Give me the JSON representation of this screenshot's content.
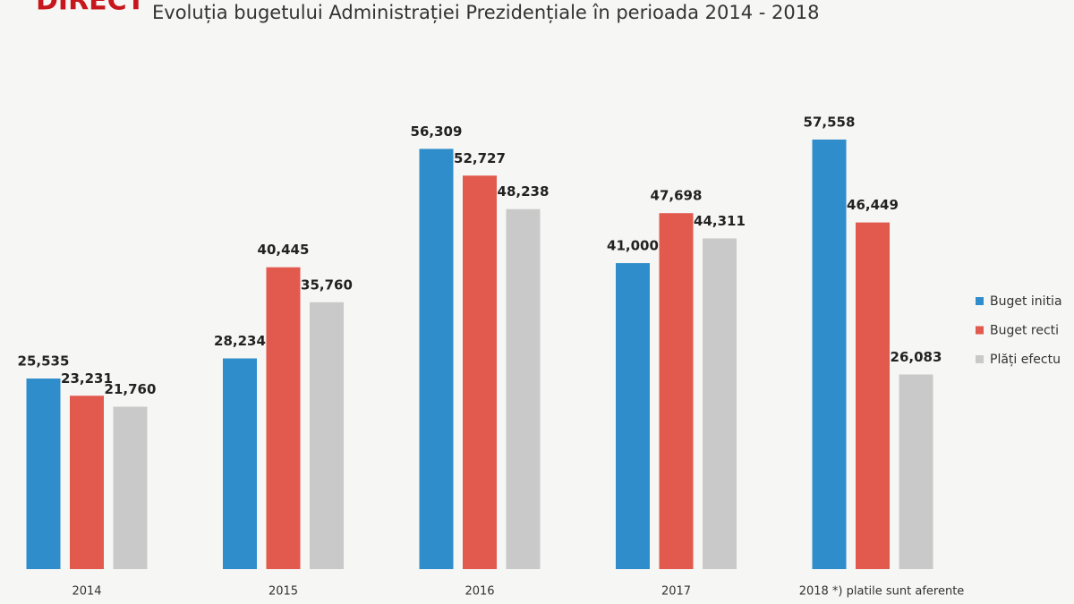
{
  "overlay_label": "DIRECT",
  "chart_data": {
    "type": "bar",
    "title": "Evoluția bugetului Administrației Prezidențiale în perioada 2014 - 2018",
    "categories": [
      "2014",
      "2015",
      "2016",
      "2017",
      "2018 *) platile sunt aferente"
    ],
    "series": [
      {
        "name": "Buget initia",
        "color": "#2f8dcb",
        "values": [
          25535,
          28234,
          56309,
          41000,
          57558
        ],
        "value_labels": [
          "25,535",
          "28,234",
          "56,309",
          "41,000",
          "57,558"
        ]
      },
      {
        "name": "Buget recti",
        "color": "#e2594d",
        "values": [
          23231,
          40445,
          52727,
          47698,
          46449
        ],
        "value_labels": [
          "23,231",
          "40,445",
          "52,727",
          "47,698",
          "46,449"
        ]
      },
      {
        "name": "Plăți efectu",
        "color": "#c9c9c9",
        "values": [
          21760,
          35760,
          48238,
          44311,
          26083
        ],
        "value_labels": [
          "21,760",
          "35,760",
          "48,238",
          "44,311",
          "26,083"
        ]
      }
    ],
    "legend": "right"
  }
}
